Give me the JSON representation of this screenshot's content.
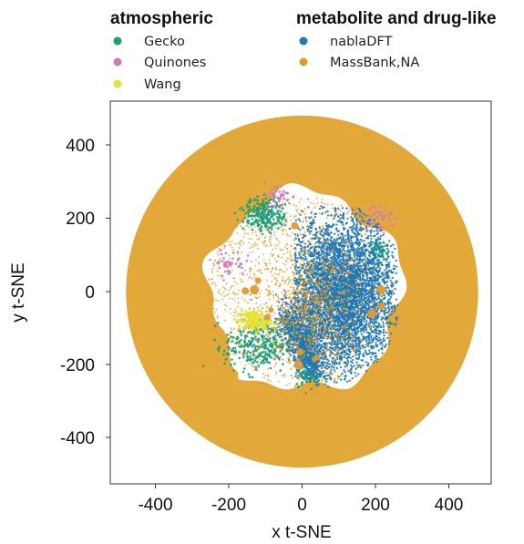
{
  "chart_data": {
    "type": "scatter",
    "title": "",
    "xlabel": "x t-SNE",
    "ylabel": "y t-SNE",
    "xlim": [
      -525,
      510
    ],
    "ylim": [
      -525,
      515
    ],
    "xticks": [
      -400,
      -200,
      0,
      200,
      400
    ],
    "yticks": [
      400,
      200,
      0,
      -200,
      -400
    ],
    "grid": false,
    "legend_position": "top",
    "legend_groups": [
      {
        "title": "atmospheric",
        "entries": [
          {
            "name": "Gecko",
            "color": "#1a9e77"
          },
          {
            "name": "Quinones",
            "color": "#cc79c0"
          },
          {
            "name": "Wang",
            "color": "#e4e13a"
          }
        ]
      },
      {
        "title": "metabolite and drug-like",
        "entries": [
          {
            "name": "nablaDFT",
            "color": "#1f77b4"
          },
          {
            "name": "MassBank,NA",
            "color": "#e09b22"
          }
        ]
      }
    ],
    "series": [
      {
        "name": "MassBank,NA",
        "color": "#e09b22",
        "region": "ring and scattered interior points",
        "outer_radius": 480,
        "inner_radius": 295
      },
      {
        "name": "nablaDFT",
        "color": "#1f77b4",
        "region": "dense cluster",
        "x_range": [
          0,
          250
        ],
        "y_range": [
          -250,
          230
        ]
      },
      {
        "name": "Gecko",
        "color": "#1a9e77",
        "region": "cluster",
        "points": [
          [
            -100,
            210
          ],
          [
            -120,
            -150
          ],
          [
            20,
            -230
          ],
          [
            210,
            110
          ]
        ]
      },
      {
        "name": "Quinones",
        "color": "#cc79c0",
        "region": "scattered",
        "points": [
          [
            -200,
            80
          ],
          [
            -70,
            260
          ],
          [
            200,
            200
          ]
        ]
      },
      {
        "name": "Wang",
        "color": "#e4e13a",
        "region": "small cluster",
        "points": [
          [
            -130,
            -80
          ]
        ]
      }
    ]
  }
}
